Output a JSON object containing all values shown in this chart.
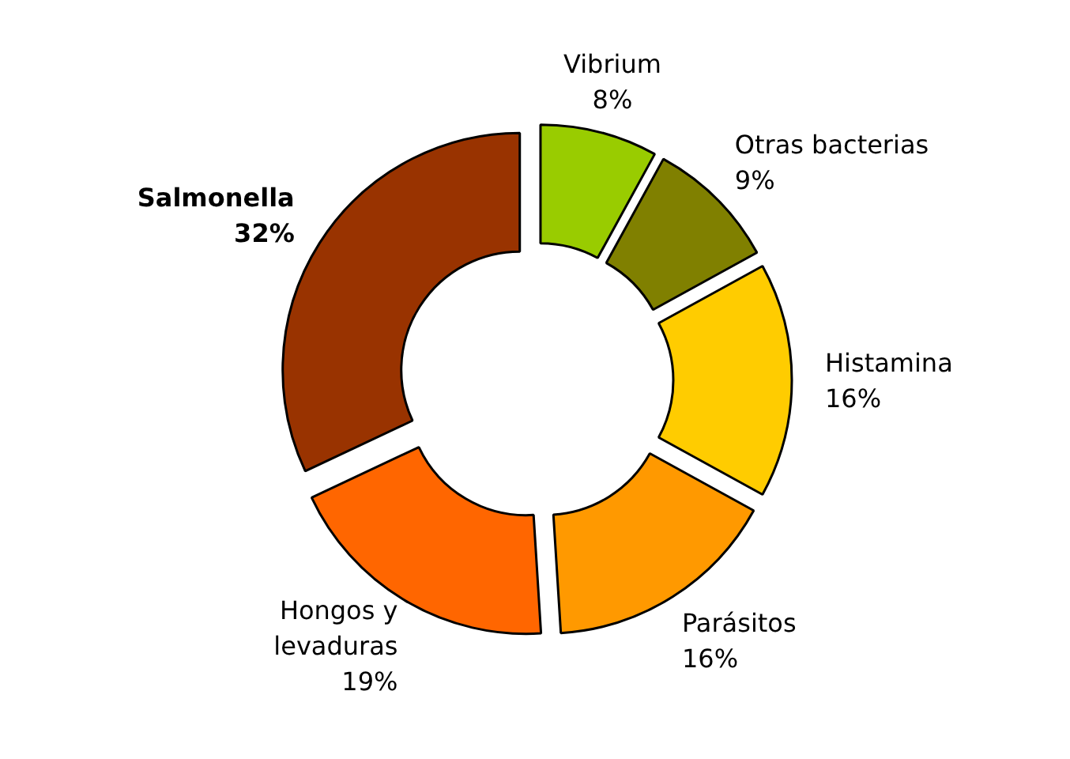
{
  "chart_data": {
    "type": "donut",
    "categories": [
      "Vibrium",
      "Otras bacterias",
      "Histamina",
      "Parásitos",
      "Hongos y\nlevaduras",
      "Salmonella"
    ],
    "values": [
      8,
      9,
      16,
      16,
      19,
      32
    ],
    "value_labels": [
      "8%",
      "9%",
      "16%",
      "16%",
      "19%",
      "32%"
    ],
    "colors": [
      "#99cc00",
      "#808000",
      "#ffcc00",
      "#ff9900",
      "#ff6600",
      "#993300"
    ]
  }
}
